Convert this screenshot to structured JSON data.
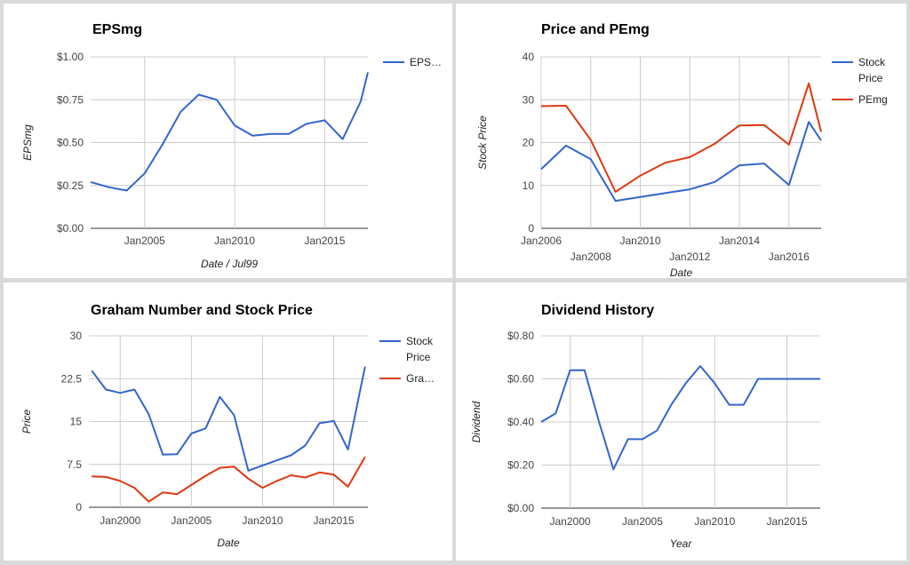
{
  "chart_data": [
    {
      "type": "line",
      "title": "EPSmg",
      "xlabel": "Date / Jul99",
      "ylabel": "EPSmg",
      "xlim": [
        2002.0,
        2017.4
      ],
      "ylim": [
        0,
        1.0
      ],
      "y_ticks": [
        "$0.00",
        "$0.25",
        "$0.50",
        "$0.75",
        "$1.00"
      ],
      "y_tick_values": [
        0,
        0.25,
        0.5,
        0.75,
        1.0
      ],
      "x_ticks": [
        "Jan2005",
        "Jan2010",
        "Jan2015"
      ],
      "x_tick_values": [
        2005,
        2010,
        2015
      ],
      "grid": true,
      "legend_position": "top-right",
      "series": [
        {
          "name": "EPS…",
          "color": "#3366cc",
          "x": [
            2002.0,
            2003.0,
            2004.0,
            2005.0,
            2006.0,
            2007.0,
            2008.0,
            2009.0,
            2010.0,
            2011.0,
            2012.0,
            2013.0,
            2014.0,
            2015.0,
            2016.0,
            2017.0,
            2017.4
          ],
          "y": [
            0.27,
            0.24,
            0.22,
            0.32,
            0.49,
            0.68,
            0.78,
            0.75,
            0.6,
            0.54,
            0.55,
            0.55,
            0.61,
            0.63,
            0.52,
            0.74,
            0.91
          ]
        }
      ]
    },
    {
      "type": "line",
      "title": "Price and PEmg",
      "xlabel": "Date",
      "ylabel": "Stock Price",
      "xlim": [
        2006.0,
        2017.3
      ],
      "ylim": [
        0,
        40
      ],
      "y_ticks": [
        "0",
        "10",
        "20",
        "30",
        "40"
      ],
      "y_tick_values": [
        0,
        10,
        20,
        30,
        40
      ],
      "x_ticks": [
        "Jan2006",
        "Jan2008",
        "Jan2010",
        "Jan2012",
        "Jan2014",
        "Jan2016"
      ],
      "x_tick_values": [
        2006,
        2008,
        2010,
        2012,
        2014,
        2016
      ],
      "grid": true,
      "legend_position": "top-right",
      "series": [
        {
          "name": "Stock Price",
          "color": "#3366cc",
          "x": [
            2006.0,
            2007.0,
            2008.0,
            2009.0,
            2010.0,
            2011.0,
            2012.0,
            2013.0,
            2014.0,
            2015.0,
            2016.0,
            2016.8,
            2017.3
          ],
          "y": [
            13.8,
            19.3,
            16.1,
            6.4,
            7.3,
            8.2,
            9.1,
            10.8,
            14.7,
            15.1,
            10.1,
            24.8,
            20.5
          ]
        },
        {
          "name": "PEmg",
          "color": "#dc3912",
          "x": [
            2006.0,
            2007.0,
            2008.0,
            2009.0,
            2010.0,
            2011.0,
            2012.0,
            2013.0,
            2014.0,
            2015.0,
            2016.0,
            2016.8,
            2017.3
          ],
          "y": [
            28.5,
            28.6,
            20.6,
            8.5,
            12.3,
            15.3,
            16.6,
            19.7,
            24.0,
            24.1,
            19.5,
            33.8,
            22.5
          ]
        }
      ]
    },
    {
      "type": "line",
      "title": "Graham Number and Stock Price",
      "xlabel": "Date",
      "ylabel": "Price",
      "xlim": [
        1997.8,
        2017.4
      ],
      "ylim": [
        0,
        30
      ],
      "y_ticks": [
        "0",
        "7.5",
        "15",
        "22.5",
        "30"
      ],
      "y_tick_values": [
        0,
        7.5,
        15,
        22.5,
        30
      ],
      "x_ticks": [
        "Jan2000",
        "Jan2005",
        "Jan2010",
        "Jan2015"
      ],
      "x_tick_values": [
        2000,
        2005,
        2010,
        2015
      ],
      "grid": true,
      "legend_position": "top-right",
      "series": [
        {
          "name": "Stock Price",
          "color": "#3366cc",
          "x": [
            1998.0,
            1999.0,
            2000.0,
            2001.0,
            2002.0,
            2003.0,
            2004.0,
            2005.0,
            2006.0,
            2007.0,
            2008.0,
            2009.0,
            2010.0,
            2011.0,
            2012.0,
            2013.0,
            2014.0,
            2015.0,
            2016.0,
            2017.2
          ],
          "y": [
            23.9,
            20.6,
            20.0,
            20.6,
            16.3,
            9.2,
            9.3,
            12.9,
            13.8,
            19.3,
            16.1,
            6.4,
            7.3,
            8.2,
            9.1,
            10.8,
            14.7,
            15.1,
            10.1,
            24.6
          ]
        },
        {
          "name": "Gra…",
          "color": "#dc3912",
          "x": [
            1998.0,
            1999.0,
            2000.0,
            2001.0,
            2002.0,
            2003.0,
            2004.0,
            2005.0,
            2006.0,
            2007.0,
            2008.0,
            2009.0,
            2010.0,
            2011.0,
            2012.0,
            2013.0,
            2014.0,
            2015.0,
            2016.0,
            2017.2
          ],
          "y": [
            5.4,
            5.3,
            4.6,
            3.4,
            1.0,
            2.6,
            2.3,
            3.9,
            5.5,
            6.9,
            7.1,
            5.0,
            3.4,
            4.6,
            5.6,
            5.2,
            6.1,
            5.7,
            3.6,
            8.8
          ]
        }
      ]
    },
    {
      "type": "line",
      "title": "Dividend History",
      "xlabel": "Year",
      "ylabel": "Dividend",
      "xlim": [
        1998.0,
        2017.3
      ],
      "ylim": [
        0,
        0.8
      ],
      "y_ticks": [
        "$0.00",
        "$0.20",
        "$0.40",
        "$0.60",
        "$0.80"
      ],
      "y_tick_values": [
        0,
        0.2,
        0.4,
        0.6,
        0.8
      ],
      "x_ticks": [
        "Jan2000",
        "Jan2005",
        "Jan2010",
        "Jan2015"
      ],
      "x_tick_values": [
        2000,
        2005,
        2010,
        2015
      ],
      "grid": true,
      "legend_position": "none",
      "series": [
        {
          "name": "",
          "color": "#3366cc",
          "x": [
            1998.0,
            1999.0,
            2000.0,
            2001.0,
            2002.0,
            2003.0,
            2004.0,
            2005.0,
            2006.0,
            2007.0,
            2008.0,
            2009.0,
            2010.0,
            2011.0,
            2012.0,
            2013.0,
            2014.0,
            2015.0,
            2016.0,
            2017.3
          ],
          "y": [
            0.4,
            0.44,
            0.64,
            0.64,
            0.4,
            0.18,
            0.32,
            0.32,
            0.36,
            0.48,
            0.58,
            0.66,
            0.58,
            0.48,
            0.48,
            0.6,
            0.6,
            0.6,
            0.6,
            0.6
          ]
        }
      ]
    }
  ]
}
